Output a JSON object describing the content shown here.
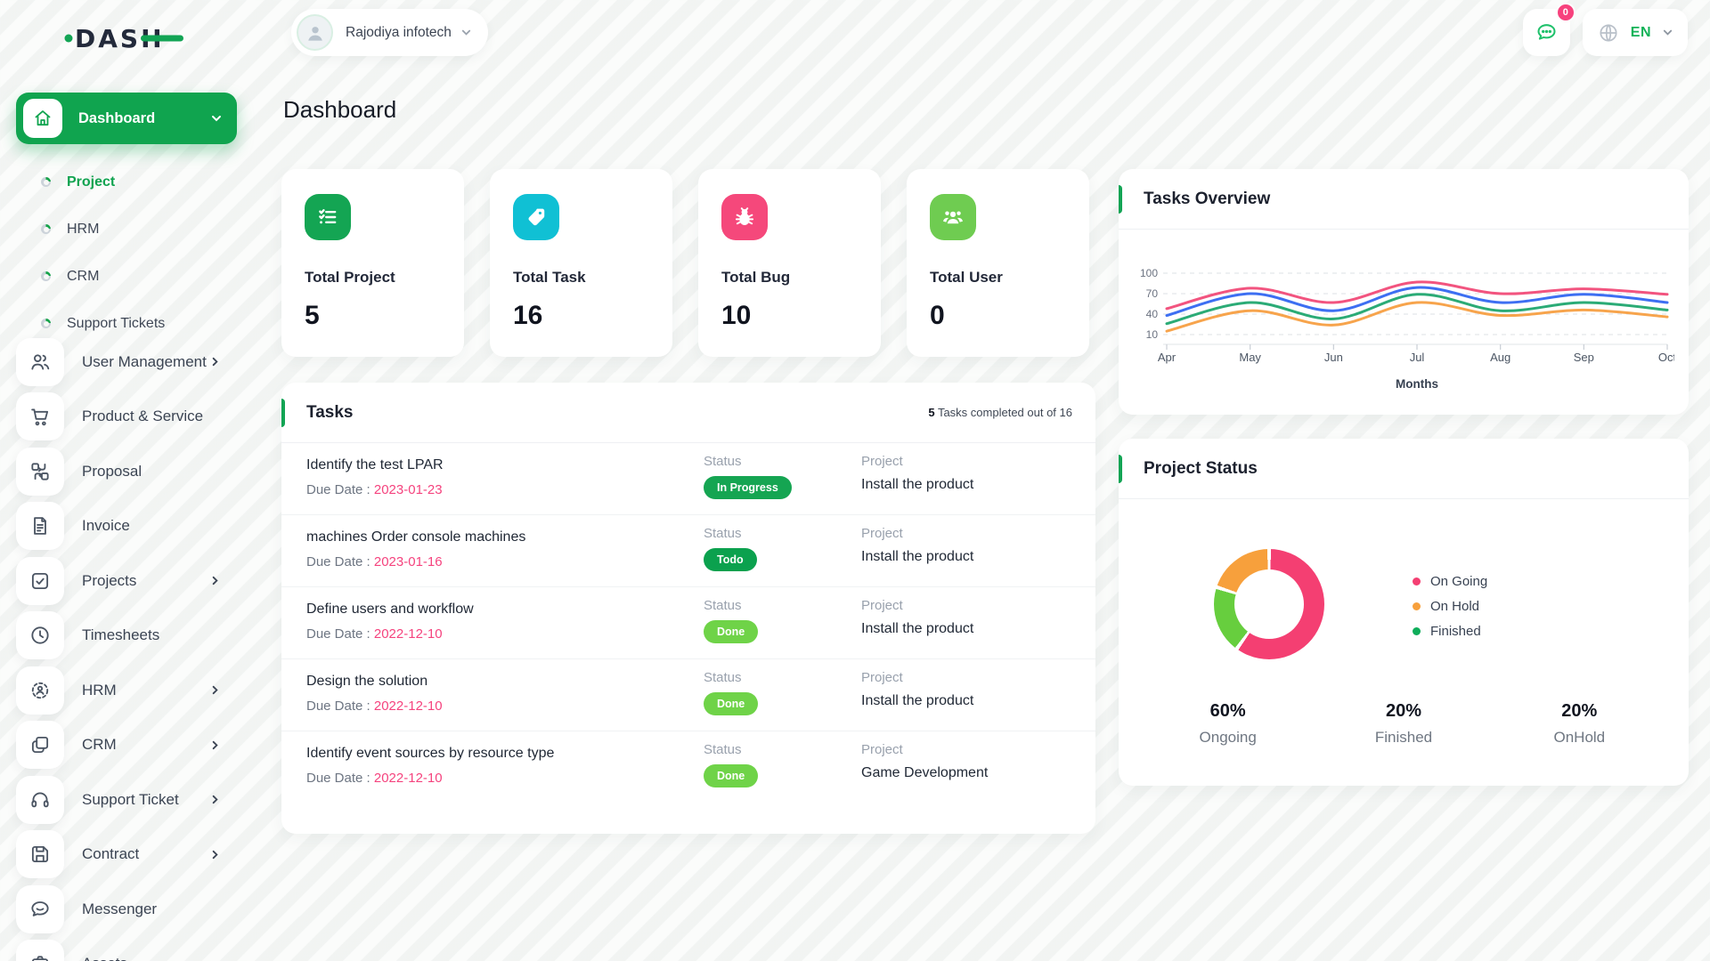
{
  "brand": {
    "logo_text": "DASH",
    "accent_color": "#12a454",
    "dark_color": "#232a3b"
  },
  "header": {
    "company": "Rajodiya infotech",
    "messages_badge": "0",
    "language": "EN"
  },
  "sidebar": {
    "dashboard_label": "Dashboard",
    "dashboard_children": [
      {
        "label": "Project",
        "active": true
      },
      {
        "label": "HRM",
        "active": false
      },
      {
        "label": "CRM",
        "active": false
      },
      {
        "label": "Support Tickets",
        "active": false
      }
    ],
    "items": [
      {
        "label": "User Management",
        "icon": "users-icon",
        "chevron": true
      },
      {
        "label": "Product & Service",
        "icon": "cart-icon",
        "chevron": false
      },
      {
        "label": "Proposal",
        "icon": "workflow-icon",
        "chevron": false
      },
      {
        "label": "Invoice",
        "icon": "invoice-icon",
        "chevron": false
      },
      {
        "label": "Projects",
        "icon": "checkbox-icon",
        "chevron": true
      },
      {
        "label": "Timesheets",
        "icon": "clock-icon",
        "chevron": false
      },
      {
        "label": "HRM",
        "icon": "target-user-icon",
        "chevron": true
      },
      {
        "label": "CRM",
        "icon": "layers-icon",
        "chevron": true
      },
      {
        "label": "Support Ticket",
        "icon": "headset-icon",
        "chevron": true
      },
      {
        "label": "Contract",
        "icon": "floppy-icon",
        "chevron": true
      },
      {
        "label": "Messenger",
        "icon": "chat-icon",
        "chevron": false
      },
      {
        "label": "Assets",
        "icon": "assets-icon",
        "chevron": false
      }
    ]
  },
  "page": {
    "title": "Dashboard"
  },
  "stats": [
    {
      "label": "Total Project",
      "value": "5",
      "icon": "checklist-icon",
      "color": "#14a553"
    },
    {
      "label": "Total Task",
      "value": "16",
      "icon": "tag-icon",
      "color": "#10c0d4"
    },
    {
      "label": "Total Bug",
      "value": "10",
      "icon": "bug-icon",
      "color": "#f5487b"
    },
    {
      "label": "Total User",
      "value": "0",
      "icon": "users-group-icon",
      "color": "#6fcc51"
    }
  ],
  "tasks_panel": {
    "title": "Tasks",
    "summary_count": "5",
    "summary_rest": " Tasks completed out of 16",
    "due_prefix": "Due Date : ",
    "status_label": "Status",
    "project_label": "Project",
    "rows": [
      {
        "name": "Identify the test LPAR",
        "due": "2023-01-23",
        "status": "In Progress",
        "status_color": "#15a552",
        "project": "Install the product"
      },
      {
        "name": "machines Order console machines",
        "due": "2023-01-16",
        "status": "Todo",
        "status_color": "#0ba14e",
        "project": "Install the product"
      },
      {
        "name": "Define users and workflow",
        "due": "2022-12-10",
        "status": "Done",
        "status_color": "#6fd348",
        "project": "Install the product"
      },
      {
        "name": "Design the solution",
        "due": "2022-12-10",
        "status": "Done",
        "status_color": "#6fd348",
        "project": "Install the product"
      },
      {
        "name": "Identify event sources by resource type",
        "due": "2022-12-10",
        "status": "Done",
        "status_color": "#6fd348",
        "project": "Game Development"
      }
    ]
  },
  "chart_data": [
    {
      "type": "line",
      "title": "Tasks Overview",
      "x": [
        "Apr",
        "May",
        "Jun",
        "Jul",
        "Aug",
        "Sep",
        "Oct"
      ],
      "xlabel": "Months",
      "ylabel": "",
      "yticks": [
        100,
        70,
        40,
        10
      ],
      "ylim": [
        0,
        110
      ],
      "grid": "dashed horizontal gridlines at yticks",
      "legend_position": "none",
      "series": [
        {
          "name": "line-pink",
          "color": "#f2547f",
          "values": [
            48,
            78,
            57,
            87,
            70,
            77,
            69
          ]
        },
        {
          "name": "line-blue",
          "color": "#3d6ff2",
          "values": [
            38,
            70,
            45,
            79,
            57,
            69,
            57
          ]
        },
        {
          "name": "line-green",
          "color": "#2bab76",
          "values": [
            26,
            57,
            33,
            69,
            45,
            57,
            46
          ]
        },
        {
          "name": "line-orange",
          "color": "#f7a44c",
          "values": [
            15,
            45,
            24,
            57,
            38,
            46,
            36
          ]
        }
      ]
    },
    {
      "type": "pie",
      "title": "Project Status",
      "labels": [
        "On Going",
        "Finished",
        "On Hold"
      ],
      "values": [
        60,
        20,
        20
      ],
      "colors": [
        "#f43f72",
        "#67ce3e",
        "#f7a03c"
      ],
      "donut": true,
      "legend_position": "right",
      "legend": [
        {
          "label": "On Going",
          "color": "#f43f72"
        },
        {
          "label": "On Hold",
          "color": "#f7a03c"
        },
        {
          "label": "Finished",
          "color": "#0ead5a"
        }
      ],
      "stats": [
        {
          "value": "60%",
          "label": "Ongoing"
        },
        {
          "value": "20%",
          "label": "Finished"
        },
        {
          "value": "20%",
          "label": "OnHold"
        }
      ]
    }
  ]
}
